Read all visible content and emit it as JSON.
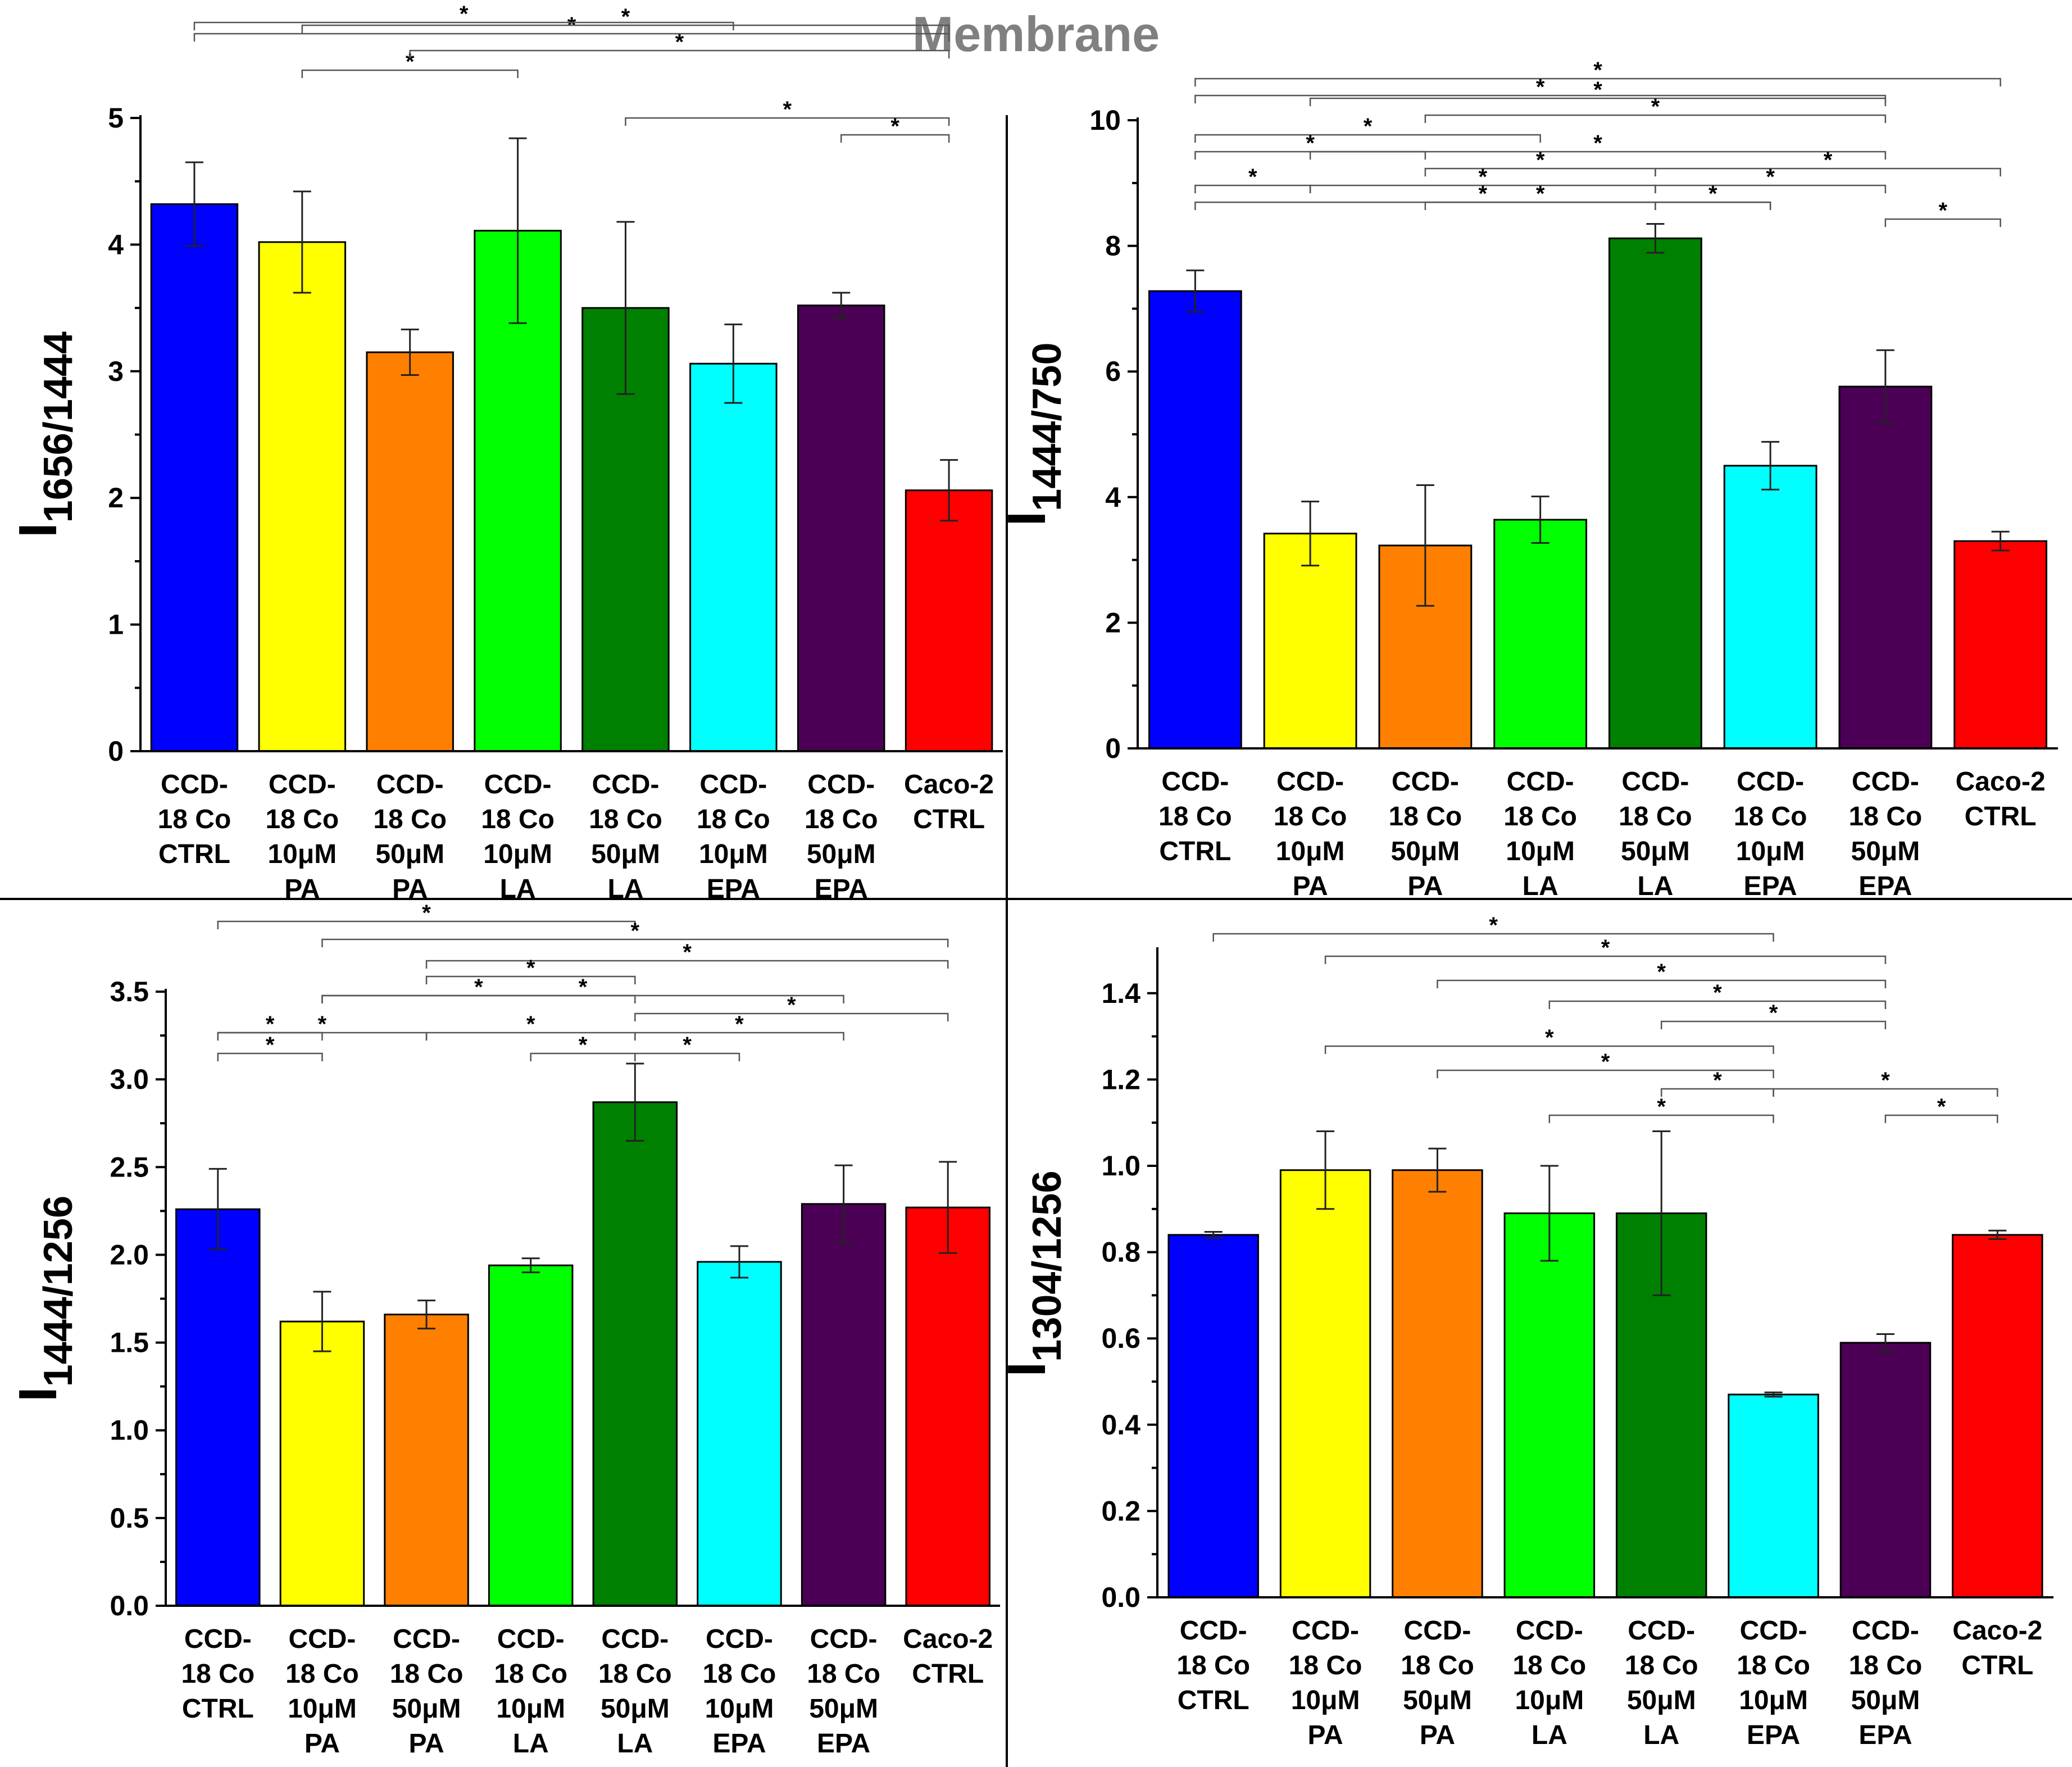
{
  "figure": {
    "title": "Membrane"
  },
  "colors": [
    "#0000ff",
    "#ffff00",
    "#ff8000",
    "#00ff00",
    "#008000",
    "#00ffff",
    "#4b0055",
    "#ff0000"
  ],
  "chart_data": [
    {
      "type": "bar",
      "title": "",
      "ylabel": {
        "base": "I",
        "sub": "1656/1444"
      },
      "xlabel": "",
      "ylim": [
        0,
        5
      ],
      "yticks": [
        "0",
        "1",
        "2",
        "3",
        "4",
        "5"
      ],
      "categories": [
        [
          "CCD-",
          "18 Co",
          "CTRL"
        ],
        [
          "CCD-",
          "18 Co",
          "10μM",
          "PA"
        ],
        [
          "CCD-",
          "18 Co",
          "50μM",
          "PA"
        ],
        [
          "CCD-",
          "18 Co",
          "10μM",
          "LA"
        ],
        [
          "CCD-",
          "18 Co",
          "50μM",
          "LA"
        ],
        [
          "CCD-",
          "18 Co",
          "10μM",
          "EPA"
        ],
        [
          "CCD-",
          "18 Co",
          "50μM",
          "EPA"
        ],
        [
          "Caco-2",
          "CTRL"
        ]
      ],
      "values": [
        4.32,
        4.02,
        3.15,
        4.11,
        3.5,
        3.06,
        3.52,
        2.06
      ],
      "errors": [
        0.33,
        0.4,
        0.18,
        0.73,
        0.68,
        0.31,
        0.1,
        0.24
      ],
      "significance": [
        [
          2,
          4
        ],
        [
          3,
          8
        ],
        [
          1,
          8
        ],
        [
          1,
          6
        ],
        [
          2,
          8
        ],
        [
          5,
          8
        ],
        [
          7,
          8
        ]
      ],
      "significance_label": "*"
    },
    {
      "type": "bar",
      "title": "",
      "ylabel": {
        "base": "I",
        "sub": "1444/750"
      },
      "xlabel": "",
      "ylim": [
        0,
        10
      ],
      "yticks": [
        "0",
        "2",
        "4",
        "6",
        "8",
        "10"
      ],
      "categories": [
        [
          "CCD-",
          "18 Co",
          "CTRL"
        ],
        [
          "CCD-",
          "18 Co",
          "10μM",
          "PA"
        ],
        [
          "CCD-",
          "18 Co",
          "50μM",
          "PA"
        ],
        [
          "CCD-",
          "18 Co",
          "10μM",
          "LA"
        ],
        [
          "CCD-",
          "18 Co",
          "50μM",
          "LA"
        ],
        [
          "CCD-",
          "18 Co",
          "10μM",
          "EPA"
        ],
        [
          "CCD-",
          "18 Co",
          "50μM",
          "EPA"
        ],
        [
          "Caco-2",
          "CTRL"
        ]
      ],
      "values": [
        7.28,
        3.42,
        3.23,
        3.64,
        8.12,
        4.5,
        5.76,
        3.3
      ],
      "errors": [
        0.33,
        0.51,
        0.96,
        0.37,
        0.23,
        0.38,
        0.58,
        0.15
      ],
      "significance": [
        [
          1,
          8
        ],
        [
          1,
          7
        ],
        [
          2,
          7
        ],
        [
          3,
          7
        ],
        [
          1,
          4
        ],
        [
          2,
          7
        ],
        [
          1,
          3
        ],
        [
          3,
          5
        ],
        [
          5,
          8
        ],
        [
          1,
          2
        ],
        [
          2,
          5
        ],
        [
          5,
          7
        ],
        [
          3,
          5
        ],
        [
          5,
          6
        ],
        [
          1,
          6
        ],
        [
          7,
          8
        ]
      ],
      "significance_label": "*"
    },
    {
      "type": "bar",
      "title": "",
      "ylabel": {
        "base": "I",
        "sub": "1444/1256"
      },
      "xlabel": "",
      "ylim": [
        0,
        3.5
      ],
      "yticks": [
        "0.0",
        "0.5",
        "1.0",
        "1.5",
        "2.0",
        "2.5",
        "3.0",
        "3.5"
      ],
      "categories": [
        [
          "CCD-",
          "18 Co",
          "CTRL"
        ],
        [
          "CCD-",
          "18 Co",
          "10μM",
          "PA"
        ],
        [
          "CCD-",
          "18 Co",
          "50μM",
          "PA"
        ],
        [
          "CCD-",
          "18 Co",
          "10μM",
          "LA"
        ],
        [
          "CCD-",
          "18 Co",
          "50μM",
          "LA"
        ],
        [
          "CCD-",
          "18 Co",
          "10μM",
          "EPA"
        ],
        [
          "CCD-",
          "18 Co",
          "50μM",
          "EPA"
        ],
        [
          "Caco-2",
          "CTRL"
        ]
      ],
      "values": [
        2.26,
        1.62,
        1.66,
        1.94,
        2.87,
        1.96,
        2.29,
        2.27
      ],
      "errors": [
        0.23,
        0.17,
        0.08,
        0.04,
        0.22,
        0.09,
        0.22,
        0.26
      ],
      "significance": [
        [
          1,
          5
        ],
        [
          2,
          8
        ],
        [
          3,
          8
        ],
        [
          3,
          5
        ],
        [
          2,
          7
        ],
        [
          2,
          5
        ],
        [
          5,
          8
        ],
        [
          1,
          2
        ],
        [
          1,
          3
        ],
        [
          3,
          5
        ],
        [
          5,
          7
        ],
        [
          4,
          5
        ],
        [
          5,
          6
        ],
        [
          1,
          2
        ]
      ],
      "significance_label": "*"
    },
    {
      "type": "bar",
      "title": "",
      "ylabel": {
        "base": "I",
        "sub": "1304/1256"
      },
      "xlabel": "",
      "ylim": [
        0,
        1.5
      ],
      "yticks": [
        "0.0",
        "0.2",
        "0.4",
        "0.6",
        "0.8",
        "1.0",
        "1.2",
        "1.4"
      ],
      "categories": [
        [
          "CCD-",
          "18 Co",
          "CTRL"
        ],
        [
          "CCD-",
          "18 Co",
          "10μM",
          "PA"
        ],
        [
          "CCD-",
          "18 Co",
          "50μM",
          "PA"
        ],
        [
          "CCD-",
          "18 Co",
          "10μM",
          "LA"
        ],
        [
          "CCD-",
          "18 Co",
          "50μM",
          "LA"
        ],
        [
          "CCD-",
          "18 Co",
          "10μM",
          "EPA"
        ],
        [
          "CCD-",
          "18 Co",
          "50μM",
          "EPA"
        ],
        [
          "Caco-2",
          "CTRL"
        ]
      ],
      "values": [
        0.84,
        0.99,
        0.99,
        0.89,
        0.89,
        0.47,
        0.59,
        0.84
      ],
      "errors": [
        0.007,
        0.09,
        0.05,
        0.11,
        0.19,
        0.005,
        0.02,
        0.01
      ],
      "significance": [
        [
          1,
          6
        ],
        [
          2,
          7
        ],
        [
          3,
          7
        ],
        [
          4,
          7
        ],
        [
          5,
          7
        ],
        [
          2,
          6
        ],
        [
          3,
          6
        ],
        [
          5,
          6
        ],
        [
          6,
          8
        ],
        [
          4,
          6
        ],
        [
          7,
          8
        ]
      ],
      "significance_label": "*"
    }
  ]
}
